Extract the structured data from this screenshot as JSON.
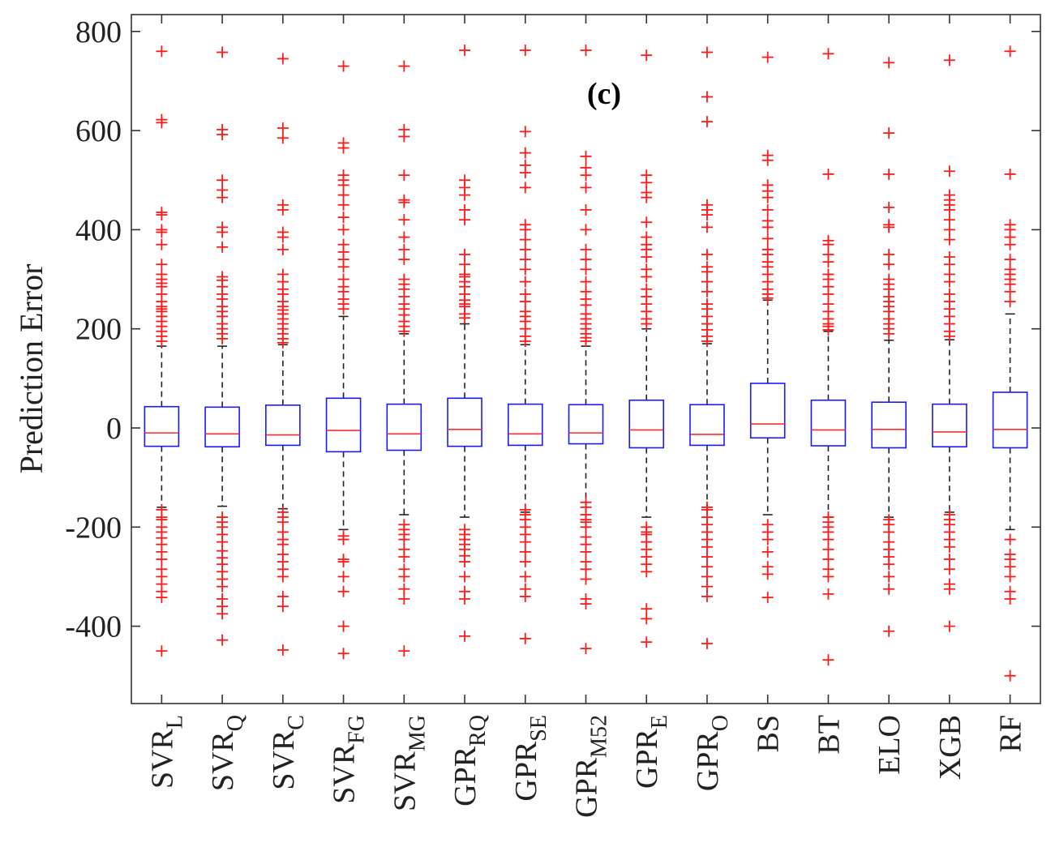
{
  "chart_data": {
    "type": "box",
    "panel_label": "(c)",
    "ylabel": "Prediction Error",
    "xlabel": "",
    "ylim": [
      -550,
      815
    ],
    "yticks": [
      800,
      600,
      400,
      200,
      0,
      -200,
      -400
    ],
    "ytick_labels": [
      "800",
      "600",
      "400",
      "200",
      "0",
      "-200",
      "-400"
    ],
    "grid": false,
    "colors": {
      "box": "#1a1aff",
      "median": "#ff2a2a",
      "whisker": "#222222",
      "outlier": "#ff1a1a",
      "axis": "#333333"
    },
    "categories": [
      {
        "main": "SVR",
        "sub": "L"
      },
      {
        "main": "SVR",
        "sub": "Q"
      },
      {
        "main": "SVR",
        "sub": "C"
      },
      {
        "main": "SVR",
        "sub": "FG"
      },
      {
        "main": "SVR",
        "sub": "MG"
      },
      {
        "main": "GPR",
        "sub": "RQ"
      },
      {
        "main": "GPR",
        "sub": "SE"
      },
      {
        "main": "GPR",
        "sub": "M52"
      },
      {
        "main": "GPR",
        "sub": "E"
      },
      {
        "main": "GPR",
        "sub": "O"
      },
      {
        "main": "BS",
        "sub": ""
      },
      {
        "main": "BT",
        "sub": ""
      },
      {
        "main": "ELO",
        "sub": ""
      },
      {
        "main": "XGB",
        "sub": ""
      },
      {
        "main": "RF",
        "sub": ""
      }
    ],
    "boxes": [
      {
        "q1": -37,
        "median": -10,
        "q3": 43,
        "whisker_low": -160,
        "whisker_high": 165,
        "outliers": [
          760,
          622,
          616,
          435,
          430,
          400,
          395,
          370,
          330,
          310,
          300,
          292,
          285,
          270,
          255,
          245,
          240,
          235,
          225,
          215,
          205,
          195,
          185,
          175,
          -165,
          -180,
          -185,
          -200,
          -210,
          -222,
          -235,
          -250,
          -265,
          -285,
          -300,
          -315,
          -330,
          -342,
          -450
        ]
      },
      {
        "q1": -38,
        "median": -12,
        "q3": 42,
        "whisker_low": -158,
        "whisker_high": 165,
        "outliers": [
          758,
          602,
          592,
          500,
          480,
          465,
          405,
          395,
          365,
          305,
          298,
          285,
          270,
          260,
          245,
          235,
          225,
          210,
          200,
          190,
          180,
          -180,
          -190,
          -200,
          -215,
          -230,
          -248,
          -262,
          -275,
          -290,
          -305,
          -320,
          -345,
          -360,
          -375,
          -428
        ]
      },
      {
        "q1": -35,
        "median": -14,
        "q3": 46,
        "whisker_low": -163,
        "whisker_high": 168,
        "outliers": [
          745,
          605,
          585,
          450,
          440,
          395,
          385,
          360,
          310,
          295,
          280,
          270,
          255,
          245,
          238,
          230,
          220,
          210,
          200,
          190,
          180,
          172,
          -170,
          -180,
          -190,
          -210,
          -225,
          -235,
          -255,
          -270,
          -285,
          -300,
          -340,
          -360,
          -448
        ]
      },
      {
        "q1": -48,
        "median": -5,
        "q3": 60,
        "whisker_low": -205,
        "whisker_high": 225,
        "outliers": [
          730,
          575,
          565,
          510,
          500,
          490,
          470,
          450,
          425,
          400,
          370,
          355,
          340,
          325,
          300,
          285,
          275,
          260,
          250,
          240,
          -218,
          -225,
          -265,
          -270,
          -300,
          -330,
          -400,
          -455
        ]
      },
      {
        "q1": -45,
        "median": -12,
        "q3": 48,
        "whisker_low": -175,
        "whisker_high": 190,
        "outliers": [
          730,
          602,
          588,
          510,
          460,
          455,
          420,
          385,
          360,
          340,
          300,
          290,
          280,
          265,
          250,
          240,
          228,
          215,
          205,
          195,
          -195,
          -205,
          -215,
          -225,
          -245,
          -260,
          -285,
          -300,
          -325,
          -345,
          -450
        ]
      },
      {
        "q1": -37,
        "median": -3,
        "q3": 60,
        "whisker_low": -180,
        "whisker_high": 210,
        "outliers": [
          762,
          500,
          485,
          470,
          440,
          420,
          350,
          330,
          310,
          305,
          295,
          285,
          270,
          258,
          250,
          245,
          230,
          222,
          -205,
          -215,
          -225,
          -235,
          -245,
          -258,
          -270,
          -300,
          -330,
          -345,
          -420
        ]
      },
      {
        "q1": -35,
        "median": -12,
        "q3": 48,
        "whisker_low": -170,
        "whisker_high": 168,
        "outliers": [
          762,
          598,
          555,
          530,
          515,
          485,
          410,
          400,
          380,
          360,
          340,
          320,
          295,
          270,
          255,
          235,
          225,
          215,
          200,
          185,
          175,
          -165,
          -175,
          -185,
          -200,
          -215,
          -230,
          -250,
          -270,
          -300,
          -325,
          -340,
          -425
        ]
      },
      {
        "q1": -32,
        "median": -10,
        "q3": 47,
        "whisker_low": -150,
        "whisker_high": 165,
        "outliers": [
          762,
          548,
          525,
          510,
          485,
          440,
          400,
          360,
          340,
          320,
          295,
          275,
          260,
          248,
          230,
          220,
          210,
          200,
          190,
          182,
          175,
          -150,
          -160,
          -175,
          -185,
          -190,
          -200,
          -220,
          -235,
          -250,
          -270,
          -285,
          -305,
          -345,
          -355,
          -445
        ]
      },
      {
        "q1": -40,
        "median": -4,
        "q3": 56,
        "whisker_low": -180,
        "whisker_high": 200,
        "outliers": [
          752,
          510,
          495,
          475,
          465,
          415,
          385,
          370,
          360,
          345,
          320,
          305,
          280,
          265,
          250,
          235,
          220,
          210,
          -200,
          -210,
          -215,
          -230,
          -245,
          -260,
          -275,
          -290,
          -365,
          -385,
          -432
        ]
      },
      {
        "q1": -35,
        "median": -13,
        "q3": 47,
        "whisker_low": -160,
        "whisker_high": 170,
        "outliers": [
          758,
          668,
          618,
          450,
          440,
          430,
          405,
          350,
          325,
          315,
          295,
          275,
          250,
          240,
          225,
          210,
          198,
          185,
          175,
          -160,
          -165,
          -180,
          -195,
          -210,
          -225,
          -240,
          -260,
          -280,
          -300,
          -320,
          -340,
          -435
        ]
      },
      {
        "q1": -20,
        "median": 8,
        "q3": 90,
        "whisker_low": -175,
        "whisker_high": 258,
        "outliers": [
          748,
          550,
          540,
          490,
          478,
          465,
          440,
          418,
          405,
          382,
          360,
          350,
          335,
          325,
          310,
          295,
          280,
          270,
          262,
          -195,
          -210,
          -225,
          -250,
          -280,
          -295,
          -342
        ]
      },
      {
        "q1": -36,
        "median": -4,
        "q3": 56,
        "whisker_low": -180,
        "whisker_high": 195,
        "outliers": [
          755,
          512,
          378,
          370,
          350,
          335,
          310,
          300,
          285,
          270,
          250,
          235,
          220,
          210,
          205,
          198,
          -180,
          -190,
          -200,
          -210,
          -225,
          -245,
          -265,
          -285,
          -300,
          -335,
          -468
        ]
      },
      {
        "q1": -40,
        "median": -3,
        "q3": 52,
        "whisker_low": -180,
        "whisker_high": 177,
        "outliers": [
          737,
          595,
          512,
          445,
          410,
          405,
          350,
          330,
          300,
          290,
          280,
          265,
          255,
          245,
          235,
          220,
          210,
          200,
          190,
          -185,
          -195,
          -210,
          -230,
          -245,
          -260,
          -275,
          -300,
          -325,
          -410
        ]
      },
      {
        "q1": -38,
        "median": -8,
        "q3": 48,
        "whisker_low": -170,
        "whisker_high": 178,
        "outliers": [
          742,
          518,
          470,
          460,
          450,
          440,
          420,
          400,
          380,
          345,
          330,
          310,
          295,
          270,
          255,
          240,
          225,
          210,
          195,
          185,
          -175,
          -185,
          -195,
          -210,
          -225,
          -240,
          -265,
          -285,
          -315,
          -325,
          -400
        ]
      },
      {
        "q1": -40,
        "median": -3,
        "q3": 72,
        "whisker_low": -205,
        "whisker_high": 230,
        "outliers": [
          760,
          512,
          410,
          400,
          385,
          370,
          340,
          320,
          310,
          300,
          290,
          275,
          255,
          -225,
          -255,
          -265,
          -280,
          -300,
          -330,
          -345,
          -500
        ]
      }
    ]
  }
}
